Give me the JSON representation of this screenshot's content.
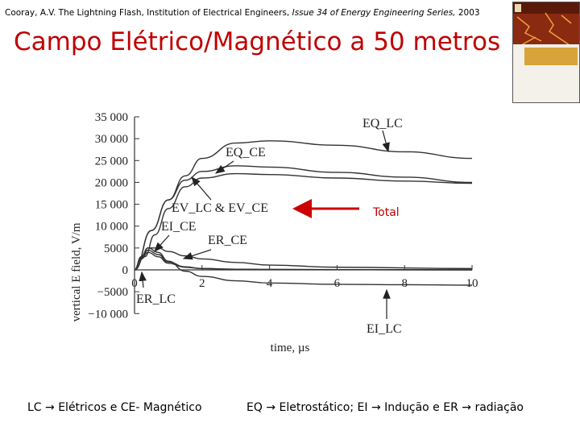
{
  "citation": {
    "prefix": "Cooray, A.V. The Lightning Flash, Institution of Electrical Engineers, ",
    "italic": "Issue 34 of Energy Engineering Series,",
    "suffix": " 2003"
  },
  "title": "Campo Elétrico/Magnético a 50 metros",
  "total_label": "Total",
  "footer_left": "LC → Elétricos e CE- Magnético",
  "footer_right": "EQ → Eletrostático; EI → Indução e ER → radiação",
  "colors": {
    "title": "#c00000",
    "arrow": "#cc0000",
    "curve": "#333333"
  },
  "chart_data": {
    "type": "line",
    "xlabel": "time, µs",
    "ylabel": "vertical E field, V/m",
    "xlim": [
      0,
      10
    ],
    "ylim": [
      -10000,
      35000
    ],
    "xticks": [
      "0",
      "2",
      "4",
      "6",
      "8",
      "10"
    ],
    "yticks": [
      "35 000",
      "30 000",
      "25 000",
      "20 000",
      "15 000",
      "10 000",
      "5000",
      "0",
      "−5000",
      "−10 000"
    ],
    "ytick_values": [
      35000,
      30000,
      25000,
      20000,
      15000,
      10000,
      5000,
      0,
      -5000,
      -10000
    ],
    "series": [
      {
        "name": "EQ_LC",
        "x": [
          0,
          0.5,
          1,
          1.5,
          2,
          3,
          4,
          6,
          8,
          10
        ],
        "y": [
          0,
          9000,
          16000,
          21500,
          25500,
          29000,
          29500,
          28500,
          27000,
          25500
        ]
      },
      {
        "name": "EQ_CE",
        "x": [
          0,
          0.5,
          1,
          1.5,
          2,
          3,
          4,
          6,
          8,
          10
        ],
        "y": [
          0,
          9000,
          16000,
          20500,
          22500,
          23800,
          23500,
          22300,
          21200,
          20000
        ]
      },
      {
        "name": "EV_LC & EV_CE",
        "x": [
          0,
          0.3,
          0.6,
          1,
          1.5,
          2,
          3,
          4,
          6,
          8,
          10
        ],
        "y": [
          0,
          3000,
          8000,
          14000,
          19000,
          21000,
          22000,
          21800,
          21000,
          20300,
          19800
        ]
      },
      {
        "name": "EI_LC",
        "x": [
          0,
          0.2,
          0.4,
          0.7,
          1,
          1.5,
          2,
          3,
          4,
          6,
          8,
          10
        ],
        "y": [
          0,
          3000,
          5000,
          4000,
          2000,
          -300,
          -1500,
          -2500,
          -3000,
          -3300,
          -3400,
          -3500
        ]
      },
      {
        "name": "EI_CE",
        "x": [
          0,
          0.2,
          0.4,
          0.7,
          1,
          1.5,
          2,
          3,
          4,
          6,
          10
        ],
        "y": [
          0,
          3000,
          5000,
          5000,
          4200,
          3200,
          2500,
          1700,
          1100,
          600,
          300
        ]
      },
      {
        "name": "ER_CE",
        "x": [
          0,
          0.2,
          0.4,
          0.7,
          1,
          1.5,
          2,
          3,
          4,
          6,
          10
        ],
        "y": [
          0,
          2500,
          4000,
          3000,
          1500,
          600,
          300,
          150,
          100,
          50,
          0
        ]
      },
      {
        "name": "ER_LC",
        "x": [
          0,
          0.2,
          0.4,
          0.7,
          1,
          1.5,
          2,
          3,
          4,
          6,
          10
        ],
        "y": [
          0,
          2800,
          4500,
          3500,
          1800,
          700,
          300,
          150,
          100,
          50,
          0
        ]
      }
    ],
    "annotations": [
      {
        "text": "EQ_LC",
        "target": "EQ_LC"
      },
      {
        "text": "EQ_CE",
        "target": "EQ_CE"
      },
      {
        "text": "EV_LC & EV_CE",
        "target": "EV_LC & EV_CE"
      },
      {
        "text": "EI_CE",
        "target": "EI_CE"
      },
      {
        "text": "ER_CE",
        "target": "ER_CE"
      },
      {
        "text": "ER_LC",
        "target": "ER_LC"
      },
      {
        "text": "EI_LC",
        "target": "EI_LC"
      }
    ],
    "grid": false,
    "legend": "none"
  }
}
